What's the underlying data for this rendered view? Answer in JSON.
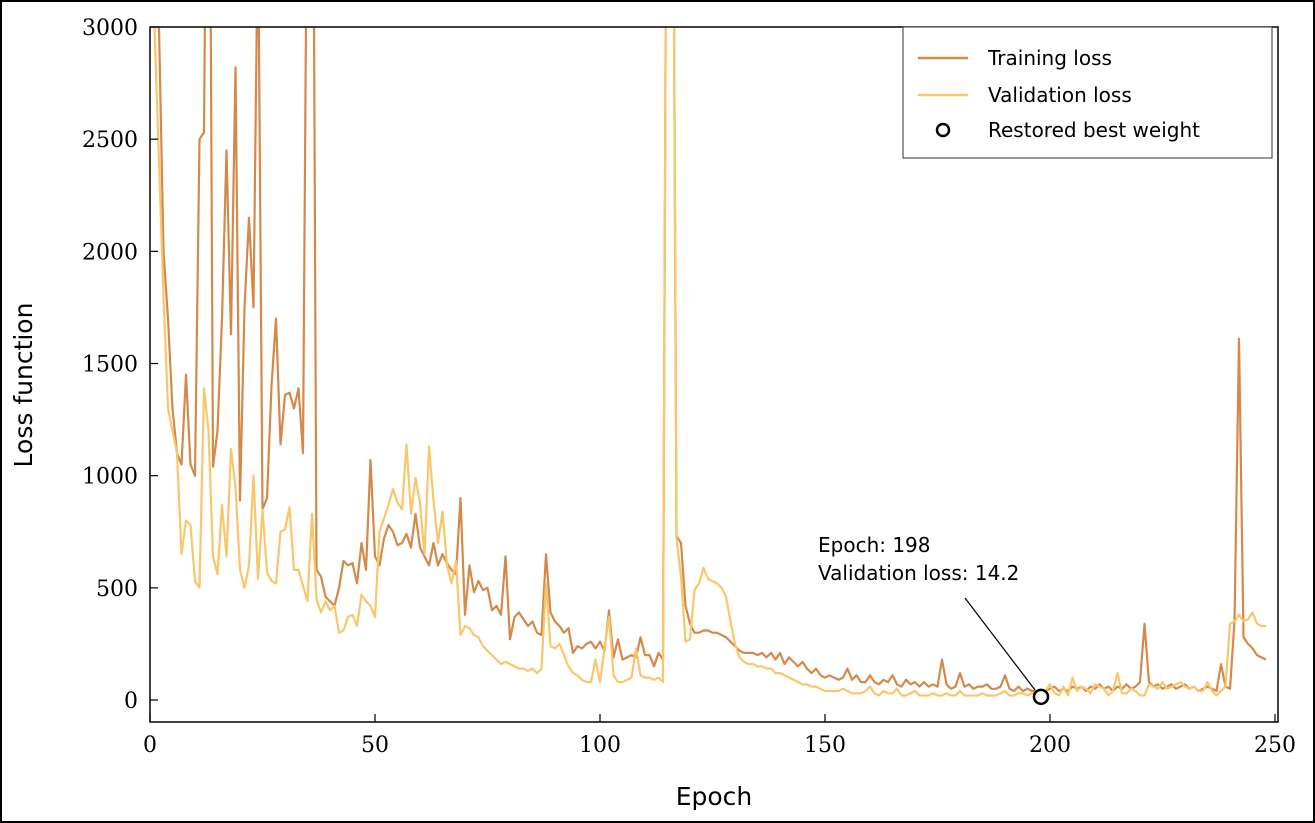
{
  "chart_data": {
    "type": "line",
    "xlabel": "Epoch",
    "ylabel": "Loss function",
    "xlim": [
      0,
      250
    ],
    "ylim": [
      -98,
      3000
    ],
    "xticks": [
      0,
      50,
      100,
      150,
      200,
      250
    ],
    "yticks": [
      0,
      500,
      1000,
      1500,
      2000,
      2500,
      3000
    ],
    "legend": "upper right",
    "x": [
      0,
      1,
      2,
      3,
      4,
      5,
      6,
      7,
      8,
      9,
      10,
      11,
      12,
      13,
      14,
      15,
      16,
      17,
      18,
      19,
      20,
      21,
      22,
      23,
      24,
      25,
      26,
      27,
      28,
      29,
      30,
      31,
      32,
      33,
      34,
      35,
      36,
      37,
      38,
      39,
      40,
      41,
      42,
      43,
      44,
      45,
      46,
      47,
      48,
      49,
      50,
      51,
      52,
      53,
      54,
      55,
      56,
      57,
      58,
      59,
      60,
      61,
      62,
      63,
      64,
      65,
      66,
      67,
      68,
      69,
      70,
      71,
      72,
      73,
      74,
      75,
      76,
      77,
      78,
      79,
      80,
      81,
      82,
      83,
      84,
      85,
      86,
      87,
      88,
      89,
      90,
      91,
      92,
      93,
      94,
      95,
      96,
      97,
      98,
      99,
      100,
      101,
      102,
      103,
      104,
      105,
      106,
      107,
      108,
      109,
      110,
      111,
      112,
      113,
      114,
      115,
      116,
      117,
      118,
      119,
      120,
      121,
      122,
      123,
      124,
      125,
      126,
      127,
      128,
      129,
      130,
      131,
      132,
      133,
      134,
      135,
      136,
      137,
      138,
      139,
      140,
      141,
      142,
      143,
      144,
      145,
      146,
      147,
      148,
      149,
      150,
      151,
      152,
      153,
      154,
      155,
      156,
      157,
      158,
      159,
      160,
      161,
      162,
      163,
      164,
      165,
      166,
      167,
      168,
      169,
      170,
      171,
      172,
      173,
      174,
      175,
      176,
      177,
      178,
      179,
      180,
      181,
      182,
      183,
      184,
      185,
      186,
      187,
      188,
      189,
      190,
      191,
      192,
      193,
      194,
      195,
      196,
      197,
      198,
      199,
      200,
      201,
      202,
      203,
      204,
      205,
      206,
      207,
      208,
      209,
      210,
      211,
      212,
      213,
      214,
      215,
      216,
      217,
      218,
      219,
      220,
      221,
      222,
      223,
      224,
      225,
      226,
      227,
      228,
      229,
      230,
      231,
      232,
      233,
      234,
      235,
      236,
      237,
      238,
      239,
      240,
      241,
      242,
      243,
      244,
      245,
      246,
      247,
      248
    ],
    "series": [
      {
        "name": "Training loss",
        "color": "#d4894a",
        "values": [
          3000,
          3500,
          3000,
          2000,
          1700,
          1300,
          1100,
          1050,
          1450,
          1050,
          1000,
          2500,
          2530,
          5000,
          1040,
          1200,
          1700,
          2450,
          1630,
          2820,
          890,
          1750,
          2150,
          1750,
          3500,
          850,
          900,
          1400,
          1700,
          1140,
          1360,
          1370,
          1300,
          1390,
          1100,
          4000,
          5000,
          580,
          550,
          460,
          440,
          420,
          500,
          620,
          600,
          610,
          520,
          700,
          580,
          1070,
          640,
          600,
          720,
          780,
          750,
          690,
          700,
          740,
          680,
          830,
          680,
          640,
          600,
          700,
          600,
          650,
          610,
          580,
          560,
          900,
          380,
          600,
          480,
          530,
          490,
          500,
          400,
          420,
          380,
          640,
          270,
          370,
          390,
          360,
          330,
          350,
          300,
          290,
          650,
          390,
          350,
          330,
          300,
          320,
          210,
          240,
          230,
          250,
          260,
          230,
          260,
          220,
          400,
          190,
          270,
          180,
          190,
          200,
          190,
          280,
          200,
          200,
          150,
          210,
          180,
          5000,
          5000,
          730,
          700,
          420,
          340,
          300,
          300,
          310,
          310,
          300,
          300,
          290,
          280,
          260,
          240,
          220,
          210,
          210,
          210,
          200,
          210,
          190,
          210,
          180,
          210,
          160,
          190,
          170,
          150,
          170,
          140,
          120,
          140,
          110,
          100,
          110,
          100,
          90,
          100,
          140,
          90,
          110,
          80,
          80,
          110,
          80,
          70,
          90,
          80,
          110,
          70,
          60,
          90,
          70,
          80,
          60,
          80,
          60,
          70,
          60,
          180,
          70,
          50,
          60,
          120,
          60,
          70,
          50,
          60,
          60,
          70,
          50,
          50,
          60,
          110,
          50,
          40,
          60,
          40,
          50,
          40,
          40,
          30,
          40,
          50,
          60,
          40,
          50,
          40,
          60,
          50,
          60,
          40,
          60,
          50,
          70,
          50,
          60,
          40,
          60,
          50,
          70,
          50,
          60,
          80,
          340,
          80,
          60,
          70,
          50,
          60,
          70,
          50,
          60,
          70,
          50,
          60,
          40,
          50,
          60,
          50,
          40,
          160,
          60,
          50,
          350,
          1610,
          280,
          250,
          230,
          200,
          190,
          180
        ]
      },
      {
        "name": "Validation loss",
        "color": "#f9c76b",
        "values": [
          3000,
          3000,
          2400,
          1800,
          1300,
          1200,
          1100,
          650,
          800,
          780,
          530,
          500,
          1390,
          1200,
          640,
          560,
          870,
          640,
          1120,
          950,
          580,
          500,
          600,
          1000,
          540,
          850,
          570,
          530,
          520,
          750,
          760,
          860,
          580,
          580,
          510,
          440,
          830,
          450,
          390,
          440,
          400,
          420,
          300,
          310,
          370,
          380,
          330,
          470,
          440,
          420,
          370,
          750,
          810,
          870,
          940,
          880,
          850,
          1140,
          830,
          990,
          880,
          650,
          1130,
          890,
          700,
          840,
          600,
          520,
          620,
          290,
          330,
          320,
          290,
          280,
          240,
          220,
          200,
          180,
          160,
          170,
          160,
          150,
          140,
          140,
          130,
          140,
          120,
          140,
          520,
          240,
          230,
          250,
          200,
          150,
          120,
          110,
          90,
          80,
          80,
          180,
          80,
          230,
          370,
          110,
          80,
          80,
          90,
          100,
          230,
          110,
          100,
          100,
          90,
          100,
          80,
          5000,
          5000,
          720,
          550,
          260,
          270,
          490,
          520,
          590,
          540,
          530,
          520,
          500,
          460,
          350,
          250,
          190,
          170,
          160,
          160,
          150,
          150,
          140,
          140,
          120,
          120,
          110,
          100,
          90,
          80,
          70,
          70,
          60,
          60,
          50,
          40,
          40,
          40,
          40,
          50,
          40,
          30,
          30,
          30,
          40,
          60,
          30,
          20,
          40,
          30,
          30,
          50,
          20,
          20,
          30,
          40,
          20,
          20,
          20,
          30,
          20,
          20,
          30,
          20,
          20,
          40,
          20,
          20,
          20,
          20,
          30,
          20,
          20,
          20,
          30,
          40,
          20,
          20,
          30,
          30,
          20,
          30,
          20,
          14.2,
          40,
          70,
          30,
          20,
          60,
          20,
          100,
          40,
          60,
          50,
          30,
          70,
          60,
          50,
          20,
          40,
          120,
          30,
          30,
          50,
          40,
          20,
          20,
          70,
          60,
          50,
          80,
          50,
          60,
          70,
          80,
          60,
          50,
          60,
          40,
          40,
          80,
          40,
          20,
          40,
          60,
          340,
          350,
          380,
          350,
          360,
          390,
          340,
          330,
          330
        ]
      }
    ],
    "best": {
      "name": "Restored best weight",
      "x": 198,
      "y": 14.2,
      "annotation": [
        "Epoch: 198",
        "Validation loss: 14.2"
      ]
    }
  }
}
